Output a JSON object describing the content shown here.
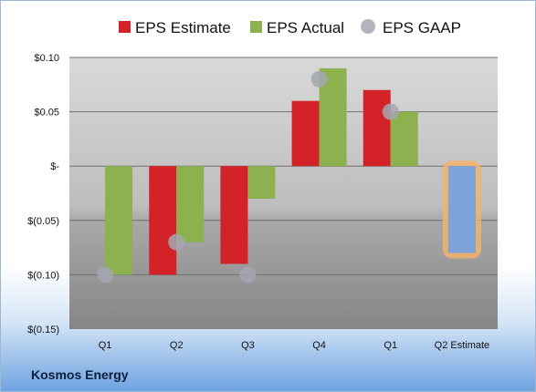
{
  "company": "Kosmos Energy",
  "colors": {
    "estimate": "#d42328",
    "actual": "#8db14e",
    "gaap": "#a3a7b0",
    "next_estimate": "#7ea3d8",
    "next_highlight": "#f4b26b"
  },
  "chart_data": {
    "type": "bar",
    "categories": [
      "Q1",
      "Q2",
      "Q3",
      "Q4",
      "Q1",
      "Q2 Estimate"
    ],
    "series": [
      {
        "name": "EPS Estimate",
        "values": [
          null,
          -0.1,
          -0.09,
          0.06,
          0.07,
          -0.08
        ]
      },
      {
        "name": "EPS Actual",
        "values": [
          -0.1,
          -0.07,
          -0.03,
          0.09,
          0.05,
          null
        ]
      },
      {
        "name": "EPS GAAP",
        "values": [
          -0.1,
          -0.07,
          -0.1,
          0.08,
          0.05,
          null
        ]
      }
    ],
    "yticks": [
      "$0.10",
      "$0.05",
      "$-",
      "$(0.05)",
      "$(0.10)",
      "$(0.15)"
    ],
    "ylim": [
      -0.15,
      0.1
    ],
    "grid": true,
    "legend": "top"
  }
}
